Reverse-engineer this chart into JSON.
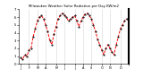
{
  "title": "Milwaukee Weather Solar Radiation per Day KW/m2",
  "ylim": [
    0,
    7
  ],
  "xlim": [
    0,
    53
  ],
  "background_color": "#ffffff",
  "line_color": "#ff0000",
  "dot_color": "#000000",
  "grid_color": "#aaaaaa",
  "x_values": [
    1,
    2,
    3,
    4,
    5,
    6,
    7,
    8,
    9,
    10,
    11,
    12,
    13,
    14,
    15,
    16,
    17,
    18,
    19,
    20,
    21,
    22,
    23,
    24,
    25,
    26,
    27,
    28,
    29,
    30,
    31,
    32,
    33,
    34,
    35,
    36,
    37,
    38,
    39,
    40,
    41,
    42,
    43,
    44,
    45,
    46,
    47,
    48,
    49,
    50,
    51,
    52
  ],
  "y_values": [
    0.8,
    0.6,
    1.2,
    1.0,
    1.8,
    2.0,
    3.5,
    4.5,
    5.5,
    6.0,
    6.2,
    5.8,
    5.0,
    4.2,
    3.0,
    2.5,
    3.8,
    4.8,
    5.8,
    6.2,
    6.5,
    6.3,
    6.0,
    5.5,
    5.8,
    6.0,
    6.2,
    5.5,
    4.8,
    5.5,
    6.0,
    6.4,
    6.5,
    6.2,
    5.8,
    5.0,
    4.2,
    3.2,
    2.5,
    1.8,
    1.2,
    2.0,
    2.5,
    2.0,
    1.5,
    1.2,
    2.5,
    3.5,
    4.5,
    5.0,
    5.5,
    5.8
  ],
  "x_tick_positions": [
    1,
    5,
    9,
    13,
    18,
    22,
    27,
    31,
    35,
    40,
    44,
    49,
    53
  ],
  "x_tick_labels": [
    "J",
    "F",
    "M",
    "A",
    "M",
    "J",
    "J",
    "A",
    "S",
    "O",
    "N",
    "D",
    ""
  ],
  "vgrid_positions": [
    5,
    9,
    13,
    18,
    22,
    27,
    31,
    35,
    40,
    44,
    49
  ],
  "yticks": [
    0,
    1,
    2,
    3,
    4,
    5,
    6,
    7
  ]
}
